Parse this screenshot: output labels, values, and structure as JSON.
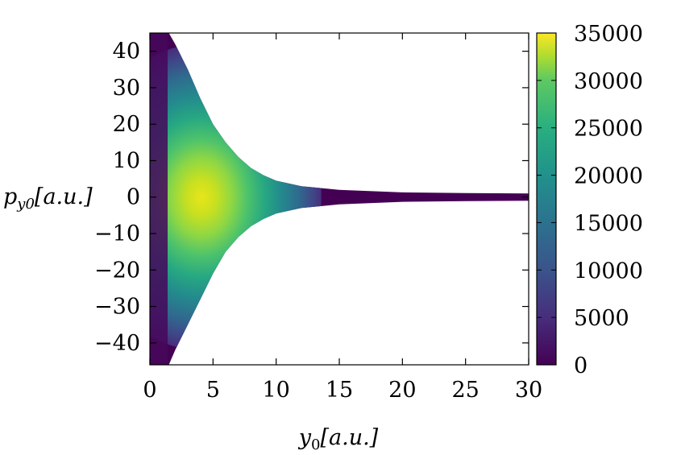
{
  "chart_data": {
    "type": "heatmap",
    "title": "",
    "xlabel": "y₀[a.u.]",
    "ylabel": "p_y0[a.u.]",
    "xlabel_parts": {
      "base": "y",
      "sub": "0",
      "rest": "[a.u.]"
    },
    "ylabel_parts": {
      "base": "p",
      "sub": "y0",
      "rest": "[a.u.]"
    },
    "xlim": [
      0,
      30
    ],
    "ylim": [
      -46,
      45
    ],
    "x_ticks": [
      0,
      5,
      10,
      15,
      20,
      25,
      30
    ],
    "x_tick_labels": [
      "0",
      "5",
      "10",
      "15",
      "20",
      "25",
      "30"
    ],
    "y_ticks": [
      40,
      30,
      20,
      10,
      0,
      -10,
      -20,
      -30,
      -40
    ],
    "y_tick_labels": [
      "40",
      "30",
      "20",
      "10",
      "0",
      "−10",
      "−20",
      "−30",
      "−40"
    ],
    "colorbar": {
      "range": [
        0,
        35000
      ],
      "ticks": [
        0,
        5000,
        10000,
        15000,
        20000,
        25000,
        30000,
        35000
      ],
      "tick_labels": [
        "0",
        "5000",
        "10000",
        "15000",
        "20000",
        "25000",
        "30000",
        "35000"
      ],
      "colormap": "viridis"
    },
    "envelope": {
      "description_free_values": true,
      "upper_edge": [
        {
          "x": 0,
          "y": 45
        },
        {
          "x": 1.5,
          "y": 45
        },
        {
          "x": 2,
          "y": 42
        },
        {
          "x": 3,
          "y": 35
        },
        {
          "x": 4,
          "y": 27
        },
        {
          "x": 5,
          "y": 20
        },
        {
          "x": 6,
          "y": 15
        },
        {
          "x": 7,
          "y": 11
        },
        {
          "x": 8,
          "y": 8
        },
        {
          "x": 9,
          "y": 6
        },
        {
          "x": 10,
          "y": 4.5
        },
        {
          "x": 12,
          "y": 3
        },
        {
          "x": 15,
          "y": 2
        },
        {
          "x": 20,
          "y": 1.3
        },
        {
          "x": 25,
          "y": 1.1
        },
        {
          "x": 30,
          "y": 1
        }
      ],
      "lower_edge": [
        {
          "x": 0,
          "y": -46
        },
        {
          "x": 1.5,
          "y": -46
        },
        {
          "x": 2,
          "y": -42
        },
        {
          "x": 3,
          "y": -35
        },
        {
          "x": 4,
          "y": -28
        },
        {
          "x": 5,
          "y": -21
        },
        {
          "x": 6,
          "y": -15
        },
        {
          "x": 7,
          "y": -11
        },
        {
          "x": 8,
          "y": -8
        },
        {
          "x": 9,
          "y": -6
        },
        {
          "x": 10,
          "y": -4.5
        },
        {
          "x": 12,
          "y": -3
        },
        {
          "x": 15,
          "y": -2
        },
        {
          "x": 20,
          "y": -1.3
        },
        {
          "x": 25,
          "y": -1.1
        },
        {
          "x": 30,
          "y": -1
        }
      ]
    },
    "peak": {
      "x": 4,
      "y": 0,
      "value": 35000
    }
  }
}
